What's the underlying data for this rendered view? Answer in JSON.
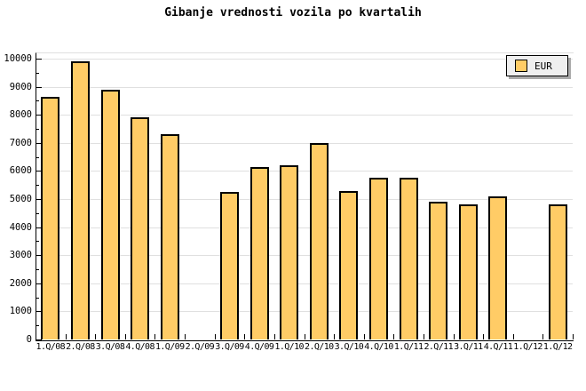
{
  "title": "Gibanje vrednosti vozila po kvartalih",
  "legend": {
    "label": "EUR"
  },
  "colors": {
    "background": "#FFFFFF",
    "bar_fill": "#FFCC66",
    "bar_border": "#000000",
    "gridline": "#E0E0E0",
    "axis": "#000000",
    "legend_bg": "#EFEFEF",
    "legend_shadow": "#AAAAAA",
    "text": "#000000"
  },
  "y_axis": {
    "tick_labels": [
      "0",
      "1000",
      "2000",
      "3000",
      "4000",
      "5000",
      "6000",
      "7000",
      "8000",
      "9000",
      "10000"
    ]
  },
  "chart_data": {
    "type": "bar",
    "title": "Gibanje vrednosti vozila po kvartalih",
    "categories": [
      "1.Q/08",
      "2.Q/08",
      "3.Q/08",
      "4.Q/08",
      "1.Q/09",
      "2.Q/09",
      "3.Q/09",
      "4.Q/09",
      "1.Q/10",
      "2.Q/10",
      "3.Q/10",
      "4.Q/10",
      "1.Q/11",
      "2.Q/11",
      "3.Q/11",
      "4.Q/11",
      "1.Q/12",
      "1.Q/12"
    ],
    "series": [
      {
        "name": "EUR",
        "values": [
          8650,
          9900,
          8900,
          7900,
          7300,
          null,
          5250,
          6150,
          6200,
          7000,
          5300,
          5750,
          5750,
          4900,
          4800,
          5100,
          null,
          4800
        ]
      }
    ],
    "xlabel": "",
    "ylabel": "",
    "ylim": [
      0,
      10000
    ],
    "y_major_step": 1000,
    "y_minor_step": 500,
    "grid": true,
    "legend_position": "top-right"
  }
}
